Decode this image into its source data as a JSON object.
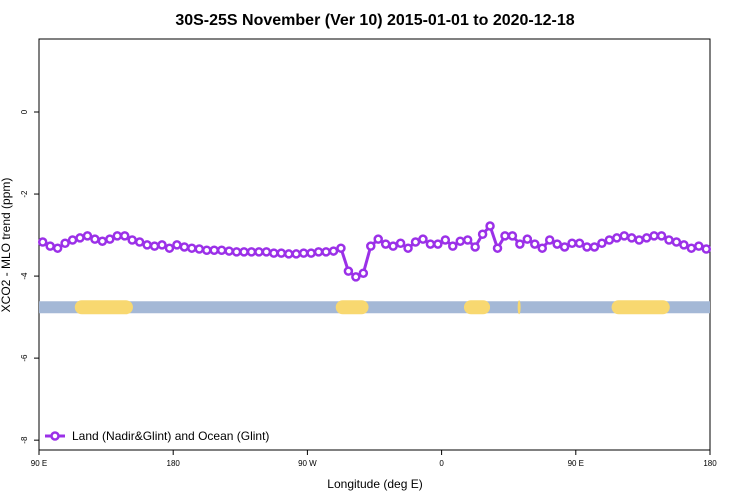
{
  "chart_data": {
    "type": "line",
    "title": "30S-25S November (Ver 10)   2015-01-01 to 2020-12-18",
    "x_label": "Longitude (deg E)",
    "y_label": "XCO2 - MLO trend (ppm)",
    "xlim": [
      90,
      540
    ],
    "ylim": [
      -8.24,
      1.78
    ],
    "xticks": [
      {
        "value": 90,
        "label": "90 E"
      },
      180,
      {
        "value": 270,
        "label": "90 W"
      },
      {
        "value": 360,
        "label": "0"
      },
      {
        "value": 450,
        "label": "90 E"
      },
      {
        "value": 540,
        "label": "180"
      }
    ],
    "yticks": [
      0,
      -2,
      -4,
      -6,
      -8
    ],
    "legend": "bottom-left",
    "x": [
      92.5,
      97.5,
      102.5,
      107.5,
      112.5,
      117.5,
      122.5,
      127.5,
      132.5,
      137.5,
      142.5,
      147.5,
      152.5,
      157.5,
      162.5,
      167.5,
      172.5,
      177.5,
      182.5,
      187.5,
      192.5,
      197.5,
      202.5,
      207.5,
      212.5,
      217.5,
      222.5,
      227.5,
      232.5,
      237.5,
      242.5,
      247.5,
      252.5,
      257.5,
      262.5,
      267.5,
      272.5,
      277.5,
      282.5,
      287.5,
      292.5,
      297.5,
      302.5,
      307.5,
      312.5,
      317.5,
      322.5,
      327.5,
      332.5,
      337.5,
      342.5,
      347.5,
      352.5,
      357.5,
      362.5,
      367.5,
      372.5,
      377.5,
      382.5,
      387.5,
      392.5,
      397.5,
      402.5,
      407.5,
      412.5,
      417.5,
      422.5,
      427.5,
      432.5,
      437.5,
      442.5,
      447.5,
      452.5,
      457.5,
      462.5,
      467.5,
      472.5,
      477.5,
      482.5,
      487.5,
      492.5,
      497.5,
      502.5,
      507.5,
      512.5,
      517.5,
      522.5,
      527.5,
      532.5,
      537.5
    ],
    "series": [
      {
        "name": "Land (Nadir&Glint) and Ocean (Glint)",
        "color": "#9b30e8",
        "values": [
          -3.17,
          -3.27,
          -3.32,
          -3.2,
          -3.12,
          -3.07,
          -3.02,
          -3.1,
          -3.15,
          -3.1,
          -3.02,
          -3.02,
          -3.12,
          -3.17,
          -3.24,
          -3.27,
          -3.24,
          -3.32,
          -3.24,
          -3.29,
          -3.32,
          -3.34,
          -3.37,
          -3.37,
          -3.37,
          -3.39,
          -3.41,
          -3.41,
          -3.41,
          -3.41,
          -3.41,
          -3.44,
          -3.44,
          -3.46,
          -3.46,
          -3.44,
          -3.44,
          -3.41,
          -3.41,
          -3.39,
          -3.32,
          -3.88,
          -4.02,
          -3.93,
          -3.27,
          -3.1,
          -3.22,
          -3.27,
          -3.2,
          -3.32,
          -3.17,
          -3.1,
          -3.22,
          -3.22,
          -3.12,
          -3.27,
          -3.15,
          -3.12,
          -3.29,
          -2.98,
          -2.78,
          -3.32,
          -3.02,
          -3.02,
          -3.22,
          -3.1,
          -3.22,
          -3.32,
          -3.12,
          -3.22,
          -3.29,
          -3.2,
          -3.2,
          -3.29,
          -3.29,
          -3.2,
          -3.12,
          -3.07,
          -3.02,
          -3.07,
          -3.12,
          -3.07,
          -3.02,
          -3.02,
          -3.12,
          -3.17,
          -3.24,
          -3.32,
          -3.27,
          -3.34
        ]
      }
    ],
    "surface_band": {
      "y": -4.76,
      "ocean_color": "#a4b8d6",
      "land_color": "#f8d870",
      "land": [
        [
          114,
          153
        ],
        [
          289,
          311
        ],
        [
          375,
          392.5
        ],
        [
          411,
          413
        ],
        [
          474,
          513
        ]
      ]
    }
  }
}
